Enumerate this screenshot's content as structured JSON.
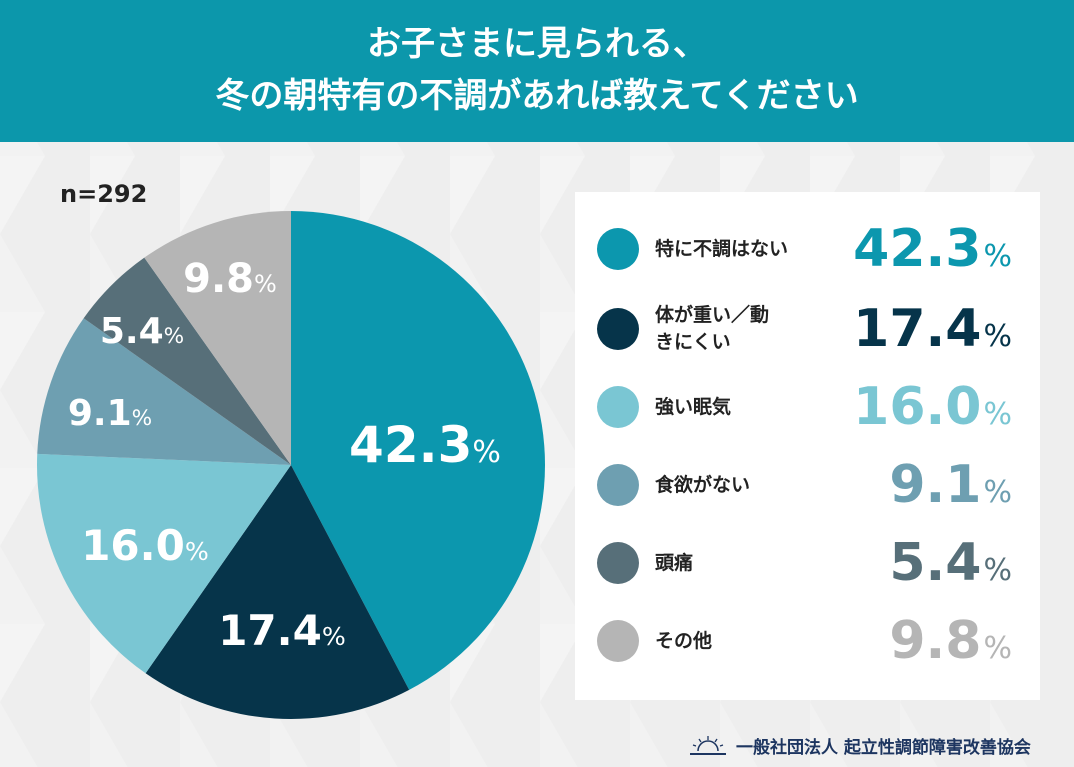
{
  "header": {
    "line1": "お子さまに見られる、",
    "line2": "冬の朝特有の不調があれば教えてください"
  },
  "sample": "n=292",
  "chart_data": {
    "type": "pie",
    "categories": [
      "特に不調はない",
      "体が重い／動きにくい",
      "強い眠気",
      "食欲がない",
      "頭痛",
      "その他"
    ],
    "values": [
      42.3,
      17.4,
      16.0,
      9.1,
      5.4,
      9.8
    ],
    "colors": [
      "#0c97ae",
      "#06344a",
      "#7ac6d3",
      "#6e9fb1",
      "#576f79",
      "#b5b5b5"
    ],
    "labels": [
      "42.3",
      "17.4",
      "16.0",
      "9.1",
      "5.4",
      "9.8"
    ],
    "unit": "%",
    "start": "top",
    "direction": "clockwise",
    "legend": "right"
  },
  "footer": {
    "org": "一般社団法人 起立性調節障害改善協会",
    "logo": "sunrise-logo"
  }
}
